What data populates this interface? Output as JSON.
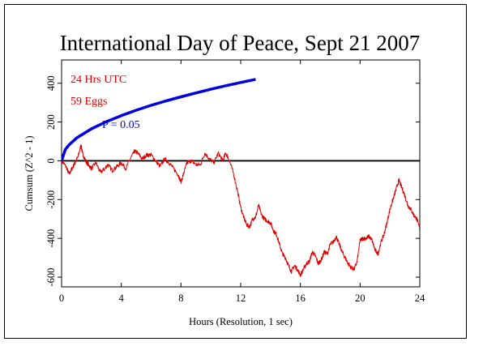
{
  "chart_data": {
    "type": "line",
    "title": "International Day of Peace, Sept 21 2007",
    "xlabel": "Hours (Resolution, 1 sec)",
    "ylabel": "Cumsum (Z^2 - 1)",
    "xlim": [
      0,
      24
    ],
    "ylim": [
      -650,
      520
    ],
    "x_ticks": [
      0,
      4,
      8,
      12,
      16,
      20,
      24
    ],
    "y_ticks": [
      -600,
      -400,
      -200,
      0,
      200,
      400
    ],
    "annotations": {
      "duration": "24 Hrs UTC",
      "eggs": "59 Eggs",
      "p_label": "P = 0.05"
    },
    "colors": {
      "cumsum": "#e00000",
      "p_curve": "#0000e0",
      "zero_line": "#000000",
      "duration_text": "#e00000",
      "eggs_text": "#e00000",
      "p_text": "#0000e0"
    },
    "series": [
      {
        "role": "cumsum",
        "x": [
          0,
          0.3,
          0.5,
          0.7,
          0.9,
          1.1,
          1.3,
          1.4,
          1.6,
          1.8,
          2.0,
          2.3,
          2.6,
          2.9,
          3.1,
          3.4,
          3.7,
          4.0,
          4.3,
          4.6,
          4.9,
          5.1,
          5.4,
          5.7,
          6.0,
          6.3,
          6.6,
          6.9,
          7.2,
          7.5,
          7.8,
          8.0,
          8.2,
          8.4,
          8.7,
          9.0,
          9.3,
          9.6,
          9.9,
          10.2,
          10.5,
          10.8,
          11.0,
          11.2,
          11.5,
          11.8,
          12.0,
          12.2,
          12.4,
          12.6,
          12.8,
          13.0,
          13.2,
          13.4,
          13.6,
          13.8,
          14.0,
          14.2,
          14.4,
          14.6,
          14.8,
          15.0,
          15.2,
          15.4,
          15.6,
          15.8,
          16.0,
          16.2,
          16.4,
          16.6,
          16.8,
          17.0,
          17.2,
          17.4,
          17.6,
          17.8,
          18.0,
          18.2,
          18.4,
          18.6,
          18.8,
          19.0,
          19.2,
          19.4,
          19.6,
          19.8,
          20.0,
          20.2,
          20.4,
          20.6,
          20.8,
          21.0,
          21.2,
          21.4,
          21.6,
          21.8,
          22.0,
          22.2,
          22.4,
          22.6,
          22.8,
          23.0,
          23.2,
          23.4,
          23.6,
          23.8,
          24.0
        ],
        "y": [
          0,
          -30,
          -70,
          -40,
          -10,
          20,
          80,
          40,
          0,
          -20,
          -40,
          -10,
          -60,
          -40,
          -20,
          -50,
          -30,
          -10,
          -40,
          10,
          50,
          40,
          10,
          30,
          30,
          0,
          -30,
          10,
          -10,
          -40,
          -70,
          -110,
          -60,
          -10,
          0,
          -20,
          -20,
          40,
          10,
          -10,
          40,
          0,
          40,
          10,
          -60,
          -160,
          -240,
          -290,
          -330,
          -340,
          -300,
          -290,
          -230,
          -280,
          -300,
          -310,
          -320,
          -360,
          -380,
          -430,
          -480,
          -500,
          -540,
          -570,
          -540,
          -560,
          -590,
          -560,
          -530,
          -520,
          -470,
          -490,
          -530,
          -510,
          -470,
          -480,
          -430,
          -420,
          -390,
          -430,
          -470,
          -500,
          -530,
          -550,
          -560,
          -520,
          -410,
          -400,
          -400,
          -390,
          -410,
          -460,
          -480,
          -420,
          -380,
          -320,
          -250,
          -200,
          -150,
          -100,
          -140,
          -180,
          -230,
          -250,
          -280,
          -300,
          -350
        ]
      },
      {
        "role": "p_curve",
        "x": [
          0,
          0.25,
          0.5,
          1,
          2,
          3,
          4,
          5,
          6,
          7,
          8,
          9,
          10,
          11,
          12,
          13
        ],
        "y": [
          0,
          58,
          82,
          117,
          165,
          202,
          233,
          261,
          286,
          309,
          330,
          350,
          369,
          387,
          404,
          420
        ]
      }
    ]
  }
}
